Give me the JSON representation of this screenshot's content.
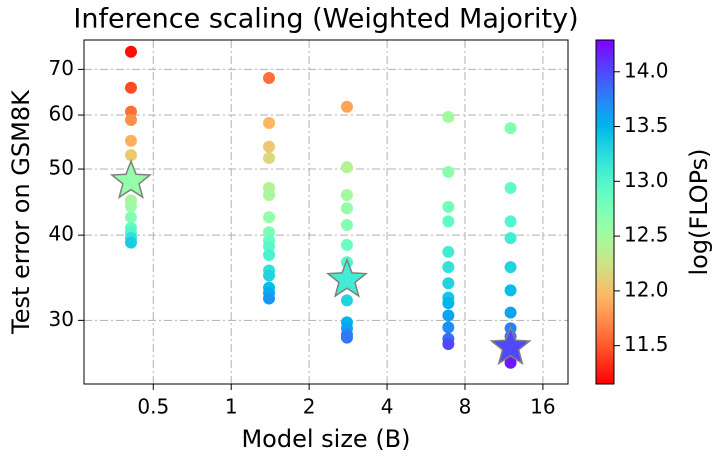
{
  "chart_data": {
    "type": "scatter",
    "title": "Inference scaling (Weighted Majority)",
    "x_label": "Model size (B)",
    "y_label": "Test error on GSM8K",
    "colorbar_label": "log(FLOPs)",
    "x_scale": "log",
    "y_scale": "log",
    "grid": true,
    "colormap": "rainbow_r",
    "xlim": [
      0.27,
      20
    ],
    "xticks": [
      0.5,
      1,
      2,
      4,
      8,
      16
    ],
    "ylim": [
      24.2,
      77.3
    ],
    "yticks": [
      30,
      40,
      50,
      60,
      70
    ],
    "clim": [
      11.15,
      14.29
    ],
    "cticks": [
      11.5,
      {
        "value": 12,
        "label": "12.0"
      },
      12.5,
      {
        "value": 13,
        "label": "13.0"
      },
      13.5,
      {
        "value": 14,
        "label": "14.0"
      }
    ],
    "x": [
      0.41,
      0.41,
      0.41,
      0.41,
      0.41,
      0.41,
      0.41,
      0.41,
      0.41,
      0.41,
      0.41,
      0.41,
      0.41,
      0.41,
      1.4,
      1.4,
      1.4,
      1.4,
      1.4,
      1.4,
      1.4,
      1.4,
      1.4,
      1.4,
      1.4,
      1.4,
      1.4,
      1.4,
      1.4,
      1.4,
      2.8,
      2.8,
      2.8,
      2.8,
      2.8,
      2.8,
      2.8,
      2.8,
      2.8,
      2.8,
      2.8,
      2.8,
      6.9,
      6.9,
      6.9,
      6.9,
      6.9,
      6.9,
      6.9,
      6.9,
      6.9,
      6.9,
      6.9,
      6.9,
      6.9,
      12,
      12,
      12,
      12,
      12,
      12,
      12,
      12,
      12,
      12,
      12
    ],
    "values": [
      74.3,
      65.8,
      60.7,
      59.0,
      55.0,
      52.4,
      47.4,
      45.0,
      44.1,
      42.5,
      41.0,
      40.3,
      39.6,
      39.0,
      68.0,
      58.4,
      53.9,
      51.9,
      46.9,
      45.8,
      42.5,
      40.4,
      39.3,
      38.5,
      37.4,
      35.5,
      34.9,
      33.5,
      32.9,
      32.3,
      61.7,
      50.3,
      45.8,
      43.8,
      41.4,
      38.7,
      36.5,
      32.1,
      29.8,
      29.2,
      28.6,
      28.3,
      59.6,
      49.5,
      44.0,
      41.9,
      37.8,
      35.9,
      34.0,
      32.4,
      31.8,
      30.5,
      29.3,
      28.2,
      27.7,
      57.4,
      46.9,
      41.9,
      39.6,
      35.9,
      33.2,
      30.8,
      29.2,
      28.4,
      27.3,
      26.0
    ],
    "color_values": [
      11.2,
      11.45,
      11.6,
      11.75,
      11.9,
      12.05,
      12.3,
      12.45,
      12.55,
      12.7,
      12.9,
      13.0,
      13.2,
      13.35,
      11.6,
      11.95,
      12.05,
      12.15,
      12.4,
      12.45,
      12.6,
      12.75,
      12.85,
      12.95,
      13.05,
      13.2,
      13.3,
      13.45,
      13.55,
      13.65,
      11.85,
      12.4,
      12.5,
      12.6,
      12.7,
      12.85,
      13.0,
      13.3,
      13.5,
      13.6,
      13.75,
      13.8,
      12.5,
      12.65,
      12.8,
      12.9,
      13.1,
      13.2,
      13.3,
      13.4,
      13.5,
      13.6,
      13.7,
      13.85,
      14.0,
      12.7,
      12.9,
      13.0,
      13.1,
      13.3,
      13.45,
      13.6,
      13.75,
      13.85,
      14.0,
      14.2
    ],
    "highlight": {
      "x": [
        0.41,
        2.8,
        12
      ],
      "values": [
        48.0,
        34.4,
        27.4
      ],
      "color_values": [
        12.6,
        13.1,
        14.0
      ]
    }
  }
}
